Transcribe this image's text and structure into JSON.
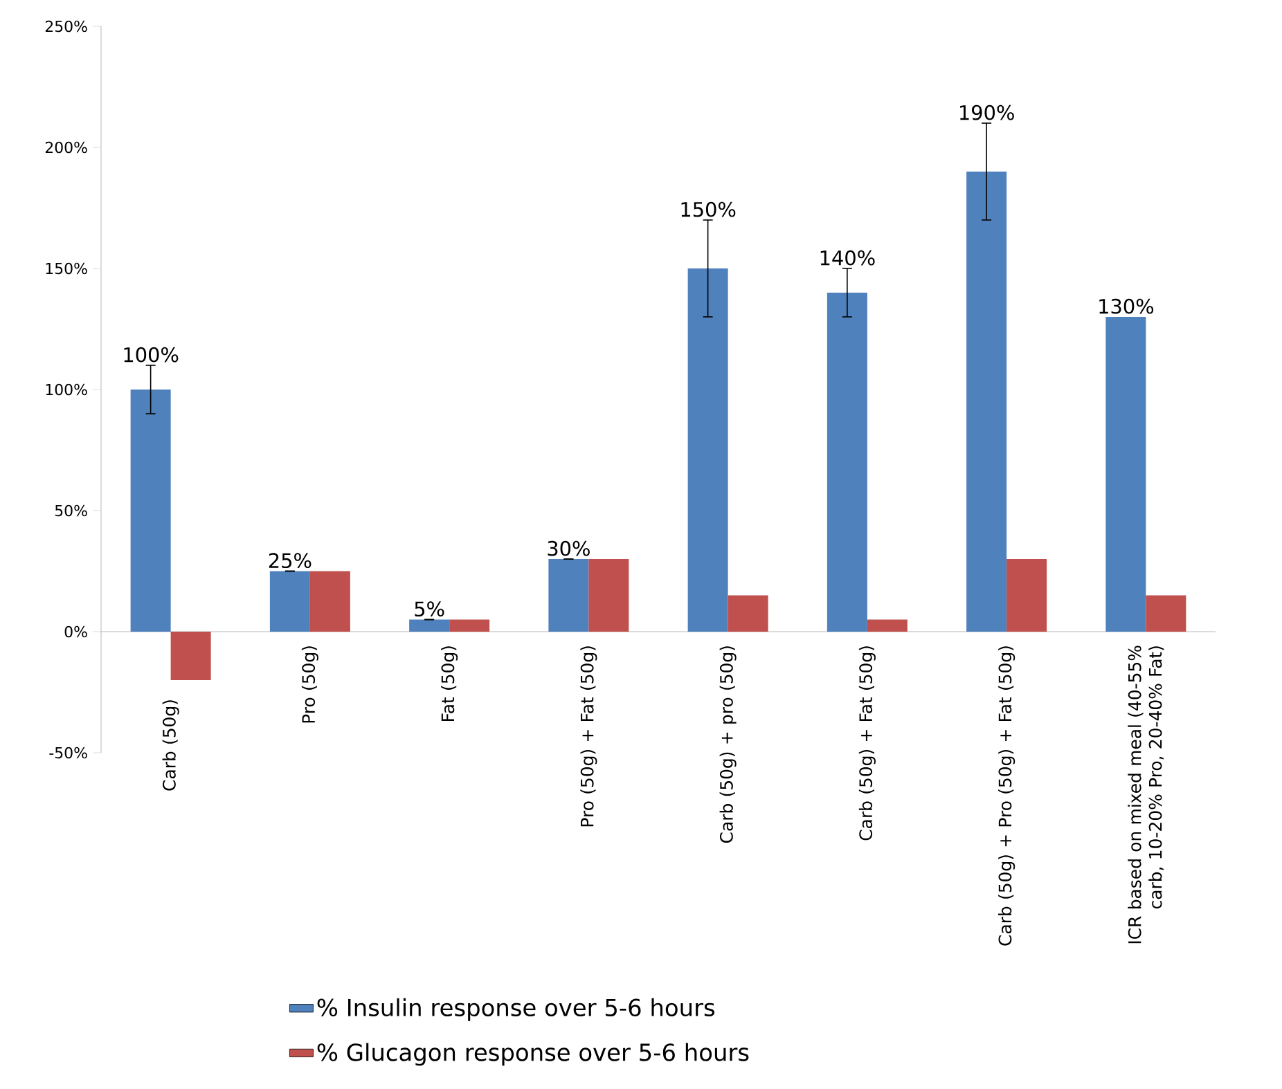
{
  "chart_data": {
    "type": "bar",
    "categories": [
      "Carb (50g)",
      "Pro (50g)",
      "Fat (50g)",
      "Pro (50g) + Fat (50g)",
      "Carb (50g) + pro (50g)",
      "Carb (50g) + Fat (50g)",
      "Carb (50g) + Pro (50g) + Fat (50g)",
      "ICR based on mixed meal (40-55% carb, 10-20% Pro, 20-40% Fat)"
    ],
    "series": [
      {
        "name": "% Insulin response over 5-6 hours",
        "color": "#4f81bd",
        "values": [
          100,
          25,
          5,
          30,
          150,
          140,
          190,
          130
        ],
        "errors": [
          10,
          0,
          0,
          0,
          20,
          10,
          20,
          null
        ],
        "value_labels": [
          "100%",
          "25%",
          "5%",
          "30%",
          "150%",
          "140%",
          "190%",
          "130%"
        ]
      },
      {
        "name": "% Glucagon response over 5-6 hours",
        "color": "#c0504d",
        "values": [
          -20,
          25,
          5,
          30,
          15,
          5,
          30,
          15
        ]
      }
    ],
    "ylim": [
      -50,
      250
    ],
    "yticks": [
      {
        "value": -50,
        "label": "-50%"
      },
      {
        "value": 0,
        "label": "0%"
      },
      {
        "value": 50,
        "label": "50%"
      },
      {
        "value": 100,
        "label": "100%"
      },
      {
        "value": 150,
        "label": "150%"
      },
      {
        "value": 200,
        "label": "200%"
      },
      {
        "value": 250,
        "label": "250%"
      }
    ],
    "legend": "bottom"
  }
}
